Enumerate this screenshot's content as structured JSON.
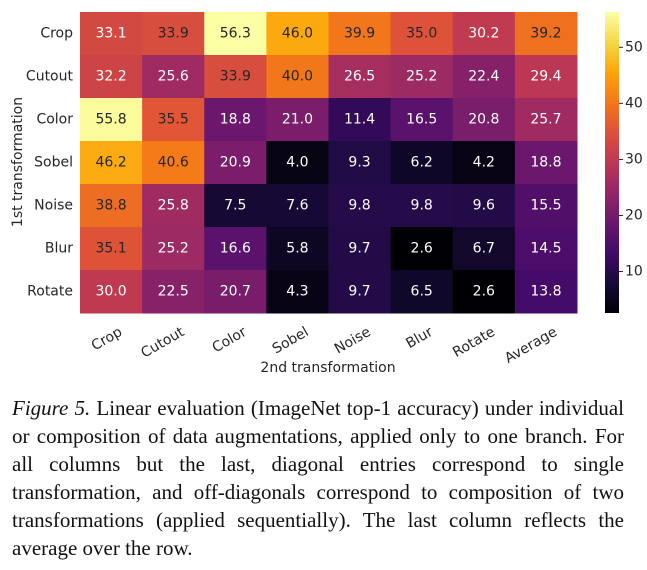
{
  "chart_data": {
    "type": "heatmap",
    "x_label": "2nd transformation",
    "y_label": "1st transformation",
    "x_categories": [
      "Crop",
      "Cutout",
      "Color",
      "Sobel",
      "Noise",
      "Blur",
      "Rotate",
      "Average"
    ],
    "y_categories": [
      "Crop",
      "Cutout",
      "Color",
      "Sobel",
      "Noise",
      "Blur",
      "Rotate"
    ],
    "values": [
      [
        33.1,
        33.9,
        56.3,
        46.0,
        39.9,
        35.0,
        30.2,
        39.2
      ],
      [
        32.2,
        25.6,
        33.9,
        40.0,
        26.5,
        25.2,
        22.4,
        29.4
      ],
      [
        55.8,
        35.5,
        18.8,
        21.0,
        11.4,
        16.5,
        20.8,
        25.7
      ],
      [
        46.2,
        40.6,
        20.9,
        4.0,
        9.3,
        6.2,
        4.2,
        18.8
      ],
      [
        38.8,
        25.8,
        7.5,
        7.6,
        9.8,
        9.8,
        9.6,
        15.5
      ],
      [
        35.1,
        25.2,
        16.6,
        5.8,
        9.7,
        2.6,
        6.7,
        14.5
      ],
      [
        30.0,
        22.5,
        20.7,
        4.3,
        9.7,
        6.5,
        2.6,
        13.8
      ]
    ],
    "value_labels": [
      [
        "33.1",
        "33.9",
        "56.3",
        "46.0",
        "39.9",
        "35.0",
        "30.2",
        "39.2"
      ],
      [
        "32.2",
        "25.6",
        "33.9",
        "40.0",
        "26.5",
        "25.2",
        "22.4",
        "29.4"
      ],
      [
        "55.8",
        "35.5",
        "18.8",
        "21.0",
        "11.4",
        "16.5",
        "20.8",
        "25.7"
      ],
      [
        "46.2",
        "40.6",
        "20.9",
        "4.0",
        "9.3",
        "6.2",
        "4.2",
        "18.8"
      ],
      [
        "38.8",
        "25.8",
        "7.5",
        "7.6",
        "9.8",
        "9.8",
        "9.6",
        "15.5"
      ],
      [
        "35.1",
        "25.2",
        "16.6",
        "5.8",
        "9.7",
        "2.6",
        "6.7",
        "14.5"
      ],
      [
        "30.0",
        "22.5",
        "20.7",
        "4.3",
        "9.7",
        "6.5",
        "2.6",
        "13.8"
      ]
    ],
    "colormap": "inferno",
    "clim": [
      2.6,
      56.3
    ],
    "cticks": [
      10,
      20,
      30,
      40,
      50
    ]
  },
  "caption": {
    "label": "Figure 5.",
    "text": "Linear evaluation (ImageNet top-1 accuracy) under individual or composition of data augmentations, applied only to one branch. For all columns but the last, diagonal entries correspond to single transformation, and off-diagonals correspond to composition of two transformations (applied sequentially). The last column reflects the average over the row."
  }
}
